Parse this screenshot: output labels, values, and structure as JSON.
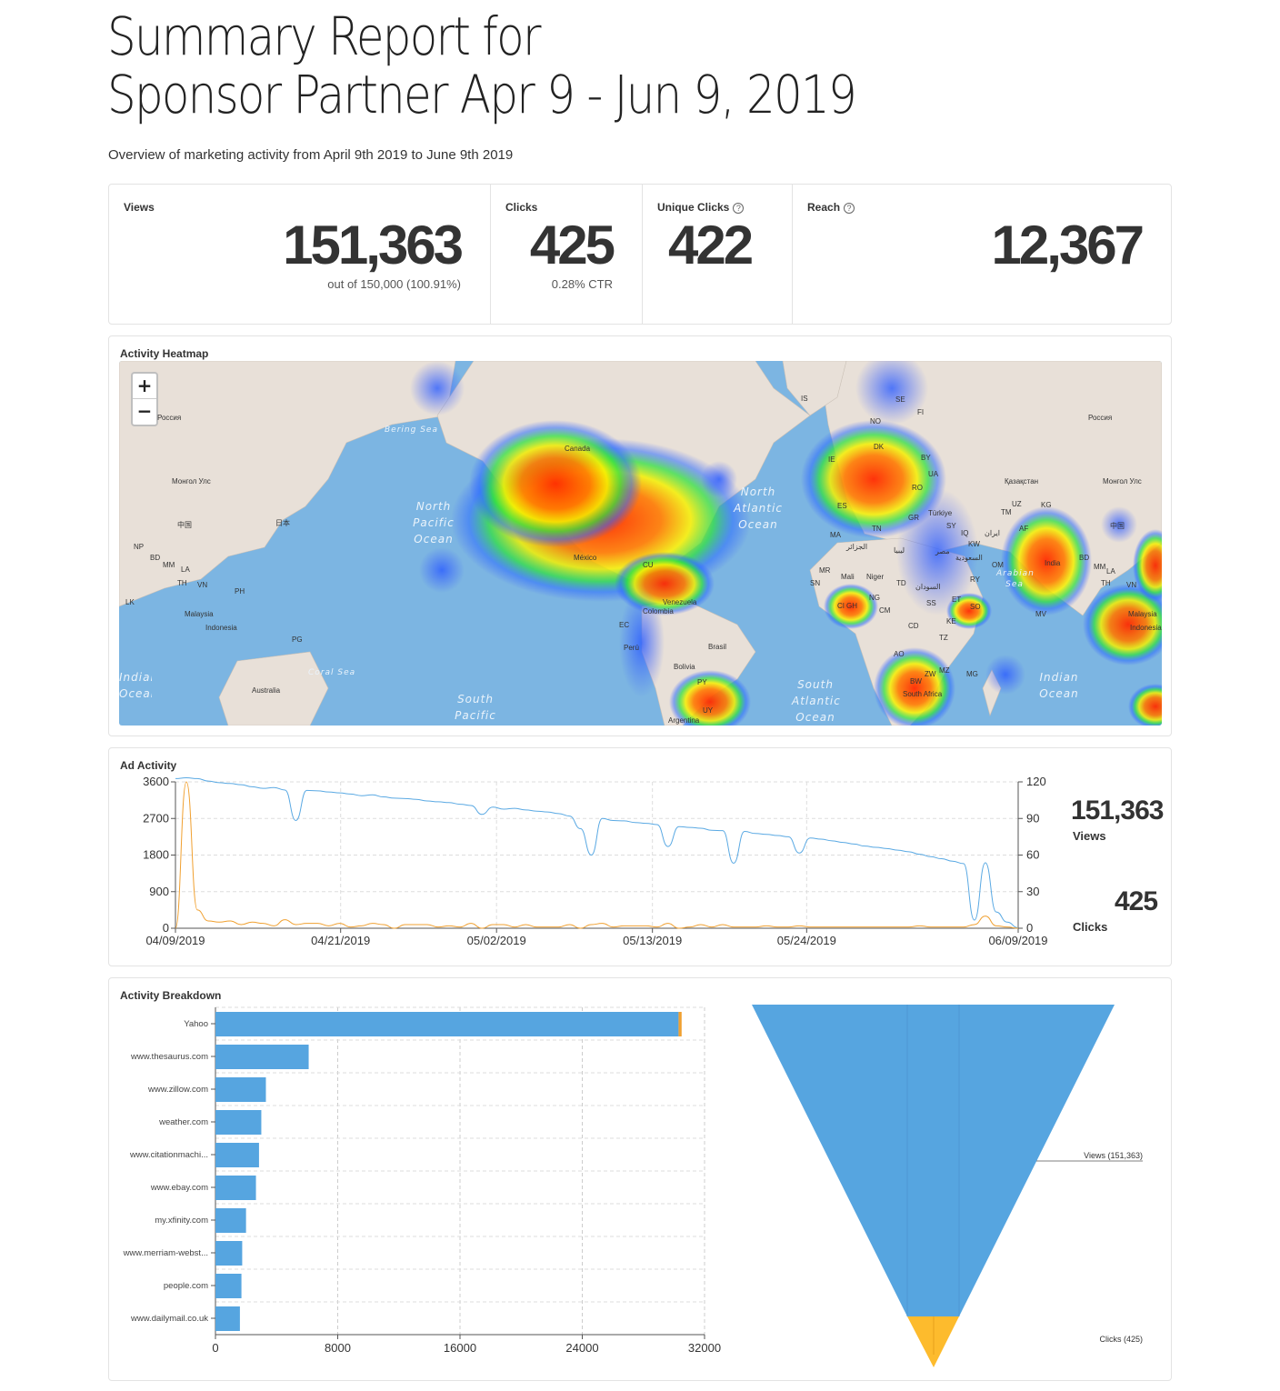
{
  "title_line1": "Summary Report for",
  "title_line2": "Sponsor Partner Apr 9 - Jun 9, 2019",
  "subtitle": "Overview of marketing activity from April 9th 2019 to June 9th 2019",
  "stats": {
    "views": {
      "label": "Views",
      "value": "151,363",
      "sub": "out of 150,000 (100.91%)"
    },
    "clicks": {
      "label": "Clicks",
      "value": "425",
      "sub": "0.28% CTR"
    },
    "unique": {
      "label": "Unique Clicks",
      "value": "422",
      "help": "?"
    },
    "reach": {
      "label": "Reach",
      "value": "12,367",
      "help": "?"
    }
  },
  "heatmap": {
    "title": "Activity Heatmap",
    "zoom_in": "+",
    "zoom_out": "−",
    "land_labels": [
      "Россия",
      "Монгол Улс",
      "中国",
      "日本",
      "NP",
      "BD",
      "MM",
      "LA",
      "TH",
      "VN",
      "PH",
      "LK",
      "Malaysia",
      "Indonesia",
      "PG",
      "Australia",
      "Canada",
      "México",
      "CU",
      "Venezuela",
      "Colombia",
      "EC",
      "Perú",
      "Brasil",
      "Bolivia",
      "PY",
      "UY",
      "Argentina",
      "IS",
      "NO",
      "SE",
      "FI",
      "DK",
      "IE",
      "BY",
      "UA",
      "ES",
      "RO",
      "Türkiye",
      "GR",
      "SY",
      "IQ",
      "KW",
      "TN",
      "MA",
      "الجزائر",
      "ليبيا",
      "مصر",
      "MR",
      "Mali",
      "Niger",
      "TD",
      "السودان",
      "SN",
      "CI",
      "GH",
      "NG",
      "CM",
      "ET",
      "SS",
      "SO",
      "KE",
      "CD",
      "TZ",
      "AO",
      "MZ",
      "ZW",
      "BW",
      "South Africa",
      "MG",
      "Россия",
      "Қазақстан",
      "Монгол Улс",
      "UZ",
      "TM",
      "KG",
      "AF",
      "ایران",
      "OM",
      "RY",
      "India",
      "BD",
      "MM",
      "LA",
      "TH",
      "VN",
      "MV",
      "中国",
      "Malaysia",
      "Indonesia",
      "السعودية"
    ],
    "ocean_labels": [
      "Bering Sea",
      "North Pacific Ocean",
      "North Atlantic Ocean",
      "Arabian Sea",
      "Indian Ocean",
      "Indian Ocean",
      "Coral Sea",
      "South Pacific",
      "South Atlantic Ocean"
    ]
  },
  "ad_activity": {
    "title": "Ad Activity",
    "views_total": "151,363",
    "views_label": "Views",
    "clicks_total": "425",
    "clicks_label": "Clicks"
  },
  "chart_data": [
    {
      "type": "line",
      "title": "Ad Activity",
      "x_ticks": [
        "04/09/2019",
        "04/21/2019",
        "05/02/2019",
        "05/13/2019",
        "05/24/2019",
        "06/09/2019"
      ],
      "y_left_ticks": [
        0,
        900,
        1800,
        2700,
        3600
      ],
      "y_right_ticks": [
        0,
        30,
        60,
        90,
        120
      ],
      "ylim_left": [
        0,
        3600
      ],
      "ylim_right": [
        0,
        120
      ],
      "grid": true,
      "series": [
        {
          "name": "Views",
          "color": "#5aa9e3",
          "axis": "left",
          "values": [
            3680,
            3700,
            3680,
            3620,
            3580,
            3560,
            3530,
            3480,
            3440,
            3460,
            3400,
            2650,
            3390,
            3380,
            3350,
            3330,
            3300,
            3260,
            3280,
            3230,
            3200,
            3190,
            3170,
            3130,
            3110,
            3090,
            3050,
            3020,
            2800,
            2980,
            2930,
            2950,
            2910,
            2880,
            2860,
            2820,
            2760,
            2450,
            1800,
            2700,
            2650,
            2640,
            2600,
            2580,
            2550,
            2010,
            2500,
            2480,
            2460,
            2410,
            2400,
            1600,
            2380,
            2330,
            2310,
            2280,
            2250,
            1850,
            2220,
            2190,
            2150,
            2110,
            2070,
            2020,
            1990,
            1960,
            1920,
            1880,
            1820,
            1760,
            1710,
            1650,
            1590,
            200,
            1610,
            400,
            150,
            10
          ]
        },
        {
          "name": "Clicks",
          "color": "#f0a030",
          "axis": "right",
          "values": [
            0,
            120,
            15,
            6,
            5,
            6,
            3,
            5,
            4,
            2,
            7,
            3,
            4,
            4,
            2,
            4,
            1,
            2,
            4,
            3,
            0,
            3,
            3,
            3,
            1,
            2,
            1,
            4,
            0,
            3,
            3,
            1,
            3,
            1,
            1,
            1,
            3,
            0,
            3,
            4,
            1,
            2,
            2,
            2,
            1,
            4,
            0,
            1,
            3,
            1,
            3,
            1,
            1,
            1,
            2,
            1,
            1,
            2,
            1,
            1,
            1,
            1,
            1,
            1,
            1,
            1,
            1,
            1,
            2,
            1,
            1,
            1,
            1,
            3,
            10,
            2,
            1,
            0
          ]
        }
      ]
    },
    {
      "type": "bar",
      "title": "Activity Breakdown",
      "orientation": "horizontal",
      "categories": [
        "Yahoo",
        "www.thesaurus.com",
        "www.zillow.com",
        "weather.com",
        "www.citationmachi...",
        "www.ebay.com",
        "my.xfinity.com",
        "www.merriam-webst...",
        "people.com",
        "www.dailymail.co.uk"
      ],
      "x_ticks": [
        0,
        8000,
        16000,
        24000,
        32000
      ],
      "xlim": [
        0,
        32000
      ],
      "series": [
        {
          "name": "Views",
          "color": "#56a5e0",
          "values": [
            30300,
            6100,
            3300,
            3000,
            2850,
            2650,
            2000,
            1750,
            1700,
            1600
          ]
        },
        {
          "name": "Clicks",
          "color": "#f0a030",
          "values": [
            200,
            0,
            0,
            0,
            0,
            0,
            0,
            0,
            0,
            0
          ]
        }
      ]
    },
    {
      "type": "funnel",
      "categories": [
        "Views (151,363)",
        "Clicks (425)"
      ],
      "values": [
        151363,
        425
      ],
      "colors": [
        "#56a5e0",
        "#fdbb2d"
      ]
    }
  ],
  "breakdown": {
    "title": "Activity Breakdown"
  }
}
